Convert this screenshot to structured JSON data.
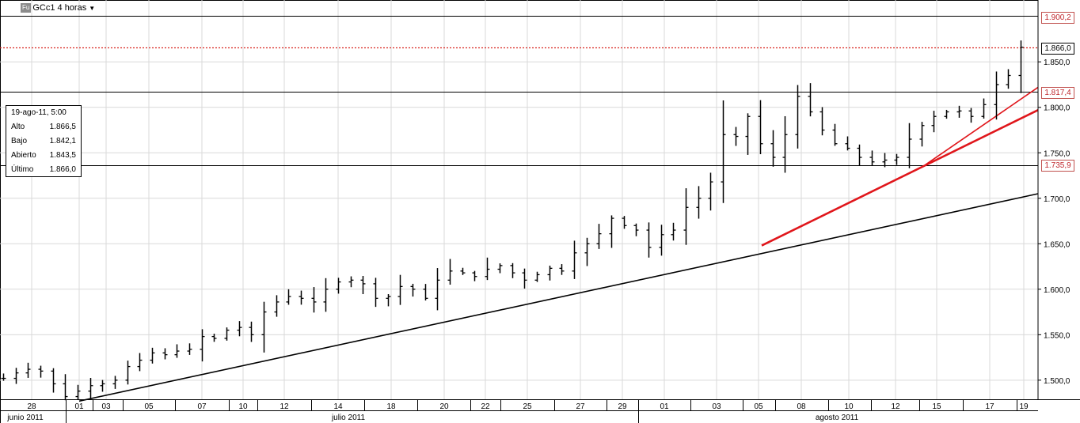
{
  "header": {
    "badge": "Fu",
    "symbol_label": "GCc1 4 horas"
  },
  "info_box": {
    "date": "19-ago-11, 5:00",
    "rows": [
      {
        "label": "Alto",
        "value": "1.866,5"
      },
      {
        "label": "Bajo",
        "value": "1.842,1"
      },
      {
        "label": "Abierto",
        "value": "1.843,5"
      },
      {
        "label": "Último",
        "value": "1.866,0"
      }
    ]
  },
  "price_labels": {
    "resistance_top": "1.900,2",
    "last": "1.866,0",
    "resistance_mid": "1.817,4",
    "support": "1.735,9"
  },
  "colors": {
    "trend_red": "#e0161b",
    "dotted_red": "#d9241f",
    "grid": "#d9d9d9",
    "bar": "#000000"
  },
  "chart_data": {
    "type": "ohlc-bar",
    "y_axis": {
      "ticks": [
        "1.500,0",
        "1.550,0",
        "1.600,0",
        "1.650,0",
        "1.700,0",
        "1.750,0",
        "1.800,0",
        "1.850,0"
      ],
      "tick_values": [
        1500,
        1550,
        1600,
        1650,
        1700,
        1750,
        1800,
        1850
      ],
      "ylim": [
        1479,
        1918
      ]
    },
    "x_axis": {
      "day_labels": [
        "28",
        "01",
        "03",
        "05",
        "07",
        "10",
        "12",
        "14",
        "18",
        "20",
        "22",
        "25",
        "27",
        "29",
        "01",
        "03",
        "05",
        "08",
        "10",
        "12",
        "15",
        "17",
        "19"
      ],
      "month_labels": [
        "junio 2011",
        "julio 2011",
        "agosto 2011"
      ]
    },
    "horizontal_levels": [
      {
        "value": 1900.2,
        "style": "solid"
      },
      {
        "value": 1866.0,
        "style": "dotted-red"
      },
      {
        "value": 1817.4,
        "style": "solid"
      },
      {
        "value": 1735.9,
        "style": "solid"
      }
    ],
    "trendlines": [
      {
        "color": "black",
        "from": {
          "date": "01-jul",
          "price": 1477
        },
        "to": {
          "date": "19-ago",
          "price": 1705
        }
      },
      {
        "color": "red",
        "from": {
          "date": "05-ago",
          "price": 1648
        },
        "to": {
          "date": "19-ago",
          "price": 1797
        }
      },
      {
        "color": "red",
        "from": {
          "date": "15-ago",
          "price": 1737
        },
        "to": {
          "date": "19-ago",
          "price": 1822
        }
      }
    ],
    "close_path": [
      1502,
      1508,
      1512,
      1510,
      1496,
      1482,
      1488,
      1494,
      1496,
      1500,
      1515,
      1522,
      1530,
      1528,
      1532,
      1534,
      1548,
      1546,
      1555,
      1558,
      1550,
      1575,
      1586,
      1592,
      1590,
      1586,
      1600,
      1608,
      1610,
      1606,
      1590,
      1592,
      1603,
      1600,
      1590,
      1610,
      1620,
      1618,
      1614,
      1622,
      1626,
      1618,
      1610,
      1616,
      1623,
      1620,
      1640,
      1650,
      1661,
      1678,
      1670,
      1665,
      1646,
      1660,
      1665,
      1690,
      1700,
      1718,
      1770,
      1768,
      1790,
      1760,
      1745,
      1770,
      1812,
      1795,
      1775,
      1760,
      1755,
      1745,
      1740,
      1742,
      1745,
      1765,
      1780,
      1790,
      1795,
      1796,
      1790,
      1803,
      1825,
      1835,
      1866
    ]
  }
}
